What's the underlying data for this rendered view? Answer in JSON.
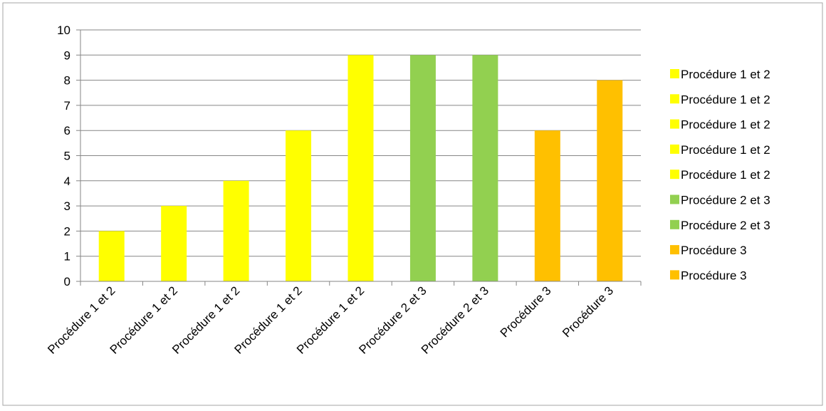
{
  "chart_data": {
    "type": "bar",
    "categories": [
      "Procédure 1 et 2",
      "Procédure 1 et 2",
      "Procédure 1 et 2",
      "Procédure 1 et 2",
      "Procédure 1 et 2",
      "Procédure 2 et 3",
      "Procédure 2 et 3",
      "Procédure 3",
      "Procédure 3"
    ],
    "values": [
      2,
      3,
      4,
      6,
      9,
      9,
      9,
      6,
      8
    ],
    "bar_colors": [
      "#ffff00",
      "#ffff00",
      "#ffff00",
      "#ffff00",
      "#ffff00",
      "#92d050",
      "#92d050",
      "#ffc000",
      "#ffc000"
    ],
    "legend": [
      {
        "label": "Procédure 1 et 2",
        "color": "#ffff00"
      },
      {
        "label": "Procédure 1 et 2",
        "color": "#ffff00"
      },
      {
        "label": "Procédure 1 et 2",
        "color": "#ffff00"
      },
      {
        "label": "Procédure 1 et 2",
        "color": "#ffff00"
      },
      {
        "label": "Procédure 1 et 2",
        "color": "#ffff00"
      },
      {
        "label": "Procédure 2 et 3",
        "color": "#92d050"
      },
      {
        "label": "Procédure 2 et 3",
        "color": "#92d050"
      },
      {
        "label": "Procédure 3",
        "color": "#ffc000"
      },
      {
        "label": "Procédure 3",
        "color": "#ffc000"
      }
    ],
    "legend_position": "right",
    "yticks": [
      0,
      1,
      2,
      3,
      4,
      5,
      6,
      7,
      8,
      9,
      10
    ],
    "ylim": [
      0,
      10
    ],
    "grid": true,
    "title": "",
    "xlabel": "",
    "ylabel": ""
  }
}
